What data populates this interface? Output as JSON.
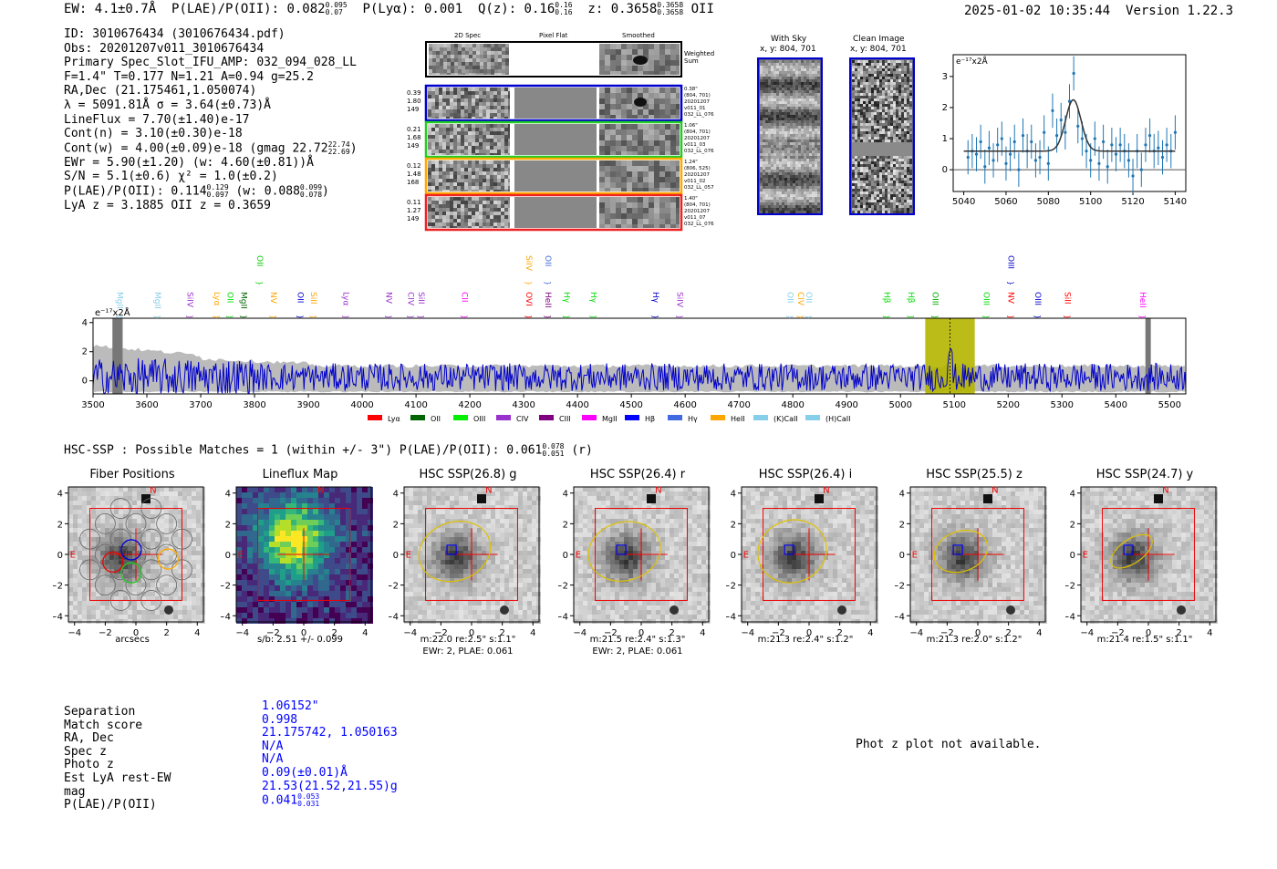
{
  "header": {
    "ew": "EW: 4.1±0.7Å",
    "plae_label": "P(LAE)/P(OII): 0.082",
    "plae_hi": "0.095",
    "plae_lo": "0.07",
    "plya": "P(Lyα): 0.001",
    "qz_label": "Q(z): 0.16",
    "qz_hi": "0.16",
    "qz_lo": "0.16",
    "z_label": "z: 0.3658",
    "z_hi": "0.3658",
    "z_lo": "0.3658",
    "z_line": "OII",
    "timestamp": "2025-01-02 10:35:44",
    "version": "Version 1.22.3"
  },
  "info": {
    "id": "ID: 3010676434 (3010676434.pdf)",
    "obs": "Obs: 20201207v011_3010676434",
    "primary": "Primary Spec_Slot_IFU_AMP: 032_094_028_LL",
    "params": "F=1.4\"  T=0.177  N=1.21  A=0.94  g=25.2",
    "radec": "RA,Dec (21.175461,1.050074)",
    "lambda": "λ = 5091.81Å  σ = 3.64(±0.73)Å",
    "lineflux": "LineFlux = 7.70(±1.40)e-17",
    "contn": "Cont(n) = 3.10(±0.30)e-18",
    "contw": "Cont(w) = 4.00(±0.09)e-18 (gmag 22.72",
    "contw_hi": "22.74",
    "contw_lo": "22.69",
    "ewr": "EWr = 5.90(±1.20) (w: 4.60(±0.81))Å",
    "sn": "S/N = 5.1(±0.6)  χ² = 1.0(±0.2)",
    "plae": "P(LAE)/P(OII): 0.114",
    "plae_hi": "0.129",
    "plae_lo": "0.097",
    "plae_w": "(w: 0.088",
    "plae_w_hi": "0.099",
    "plae_w_lo": "0.078",
    "lya_z": "LyA z = 3.1885  OII z = 0.3659"
  },
  "cutouts": {
    "col_headers": [
      "2D Spec",
      "Pixel Flat",
      "Smoothed"
    ],
    "weighted_sum": "Weighted Sum",
    "rows": [
      {
        "stats": [
          "0.39",
          "1.80",
          "149"
        ],
        "meta": [
          "0.38\"",
          "(804, 701)",
          "20201207",
          "v011_01",
          "032_LL_076"
        ],
        "color": "#0000cc"
      },
      {
        "stats": [
          "0.21",
          "1.68",
          "149"
        ],
        "meta": [
          "1.06\"",
          "(804, 701)",
          "20201207",
          "v011_03",
          "032_LL_076"
        ],
        "color": "#22cc22"
      },
      {
        "stats": [
          "0.12",
          "1.48",
          "168"
        ],
        "meta": [
          "1.24\"",
          "(806, 525)",
          "20201207",
          "v011_02",
          "032_LL_057"
        ],
        "color": "#ffaa00"
      },
      {
        "stats": [
          "0.11",
          "1.27",
          "149"
        ],
        "meta": [
          "1.40\"",
          "(804, 701)",
          "20201207",
          "v011_07",
          "032_LL_076"
        ],
        "color": "#ee2222"
      }
    ],
    "with_sky_title": "With Sky",
    "with_sky_xy": "x, y: 804, 701",
    "clean_title": "Clean Image",
    "clean_xy": "x, y: 804, 701"
  },
  "fit_plot": {
    "unit_label": "e⁻¹⁷x2Å",
    "chart_data": {
      "type": "scatter",
      "xlim": [
        5035,
        5145
      ],
      "ylim": [
        -0.7,
        3.7
      ],
      "x_ticks": [
        "5040",
        "5060",
        "5080",
        "5100",
        "5120",
        "5140"
      ],
      "y_ticks": [
        "0",
        "1",
        "2",
        "3"
      ],
      "continuum": 0.6,
      "gauss_center": 5091.8,
      "gauss_amp": 1.65,
      "gauss_sigma": 3.64,
      "x": [
        5042,
        5044,
        5046,
        5048,
        5050,
        5052,
        5054,
        5056,
        5058,
        5060,
        5062,
        5064,
        5066,
        5068,
        5070,
        5072,
        5074,
        5076,
        5078,
        5080,
        5082,
        5084,
        5086,
        5088,
        5090,
        5092,
        5094,
        5096,
        5098,
        5100,
        5102,
        5104,
        5106,
        5108,
        5110,
        5112,
        5114,
        5116,
        5118,
        5120,
        5122,
        5124,
        5126,
        5128,
        5130,
        5132,
        5134,
        5136,
        5138,
        5140
      ],
      "y": [
        0.4,
        0.6,
        0.5,
        0.9,
        0.1,
        0.7,
        0.3,
        0.8,
        1.0,
        0.2,
        0.5,
        0.9,
        0.0,
        1.1,
        0.6,
        0.9,
        0.3,
        0.4,
        1.2,
        0.2,
        1.9,
        1.1,
        1.6,
        1.2,
        2.2,
        3.1,
        1.4,
        1.0,
        0.6,
        0.3,
        1.0,
        0.2,
        0.9,
        0.1,
        0.8,
        0.5,
        0.8,
        0.6,
        0.3,
        -0.2,
        0.6,
        0.0,
        0.8,
        1.1,
        0.6,
        0.7,
        0.4,
        0.8,
        0.6,
        1.2
      ],
      "err": 0.55
    }
  },
  "spectrum": {
    "unit_label": "e⁻¹⁷x2Å",
    "chart_data": {
      "type": "line",
      "xlim": [
        3500,
        5530
      ],
      "ylim": [
        -0.9,
        4.3
      ],
      "x_ticks": [
        "3500",
        "3600",
        "3700",
        "3800",
        "3900",
        "4000",
        "4100",
        "4200",
        "4300",
        "4400",
        "4500",
        "4600",
        "4700",
        "4800",
        "4900",
        "5000",
        "5100",
        "5200",
        "5300",
        "5400",
        "5500"
      ],
      "y_ticks": [
        "0",
        "2",
        "4"
      ],
      "highlight_range": [
        5046,
        5138
      ],
      "line_marker": 5091.8,
      "masked_ranges": [
        [
          3536,
          3555
        ],
        [
          5455,
          5465
        ]
      ],
      "line_labels": [
        {
          "w": 3540,
          "label": "MgII",
          "color": "#87ceeb",
          "row": 1
        },
        {
          "w": 3610,
          "label": "MgII",
          "color": "#87ceeb",
          "row": 1
        },
        {
          "w": 3670,
          "label": "SiIV",
          "color": "#9932cc",
          "row": 1
        },
        {
          "w": 3720,
          "label": "Lyα",
          "color": "#ffa500",
          "row": 1
        },
        {
          "w": 3745,
          "label": "OII",
          "color": "#00dd00",
          "row": 1
        },
        {
          "w": 3770,
          "label": "MgII",
          "color": "#006400",
          "row": 1
        },
        {
          "w": 3800,
          "label": "OII",
          "color": "#00cc00",
          "row": 0
        },
        {
          "w": 3825,
          "label": "NV",
          "color": "#ffa500",
          "row": 1
        },
        {
          "w": 3875,
          "label": "OII",
          "color": "#0000cc",
          "row": 1
        },
        {
          "w": 3900,
          "label": "SiII",
          "color": "#ffa500",
          "row": 1
        },
        {
          "w": 3960,
          "label": "Lyα",
          "color": "#9932cc",
          "row": 1
        },
        {
          "w": 4040,
          "label": "NV",
          "color": "#9932cc",
          "row": 1
        },
        {
          "w": 4080,
          "label": "CIV",
          "color": "#9932cc",
          "row": 1
        },
        {
          "w": 4100,
          "label": "SiII",
          "color": "#9932cc",
          "row": 1
        },
        {
          "w": 4180,
          "label": "CII",
          "color": "#ff00ff",
          "row": 1
        },
        {
          "w": 4300,
          "label": "SiIV",
          "color": "#ffa500",
          "row": 0
        },
        {
          "w": 4300,
          "label": "OVI",
          "color": "#ff0000",
          "row": 1
        },
        {
          "w": 4335,
          "label": "OII",
          "color": "#4169e1",
          "row": 0
        },
        {
          "w": 4335,
          "label": "HeII",
          "color": "#800080",
          "row": 1
        },
        {
          "w": 4370,
          "label": "Hγ",
          "color": "#00dd00",
          "row": 1
        },
        {
          "w": 4420,
          "label": "Hγ",
          "color": "#00dd00",
          "row": 1
        },
        {
          "w": 4535,
          "label": "Hγ",
          "color": "#0000cc",
          "row": 1
        },
        {
          "w": 4580,
          "label": "SiIV",
          "color": "#9932cc",
          "row": 1
        },
        {
          "w": 4785,
          "label": "OII",
          "color": "#87ceeb",
          "row": 1
        },
        {
          "w": 4805,
          "label": "CIV",
          "color": "#ffa500",
          "row": 1
        },
        {
          "w": 4820,
          "label": "OII",
          "color": "#87ceeb",
          "row": 1
        },
        {
          "w": 4965,
          "label": "Hβ",
          "color": "#00dd00",
          "row": 1
        },
        {
          "w": 5010,
          "label": "Hβ",
          "color": "#00dd00",
          "row": 1
        },
        {
          "w": 5055,
          "label": "OIII",
          "color": "#00aa00",
          "row": 1
        },
        {
          "w": 5150,
          "label": "OIII",
          "color": "#00dd00",
          "row": 1
        },
        {
          "w": 5195,
          "label": "NV",
          "color": "#ff0000",
          "row": 1
        },
        {
          "w": 5195,
          "label": "OIII",
          "color": "#0000cc",
          "row": 0
        },
        {
          "w": 5245,
          "label": "OIII",
          "color": "#0000cc",
          "row": 1
        },
        {
          "w": 5300,
          "label": "SiII",
          "color": "#ff0000",
          "row": 1
        },
        {
          "w": 5440,
          "label": "HeII",
          "color": "#ff00ff",
          "row": 1
        }
      ],
      "legend": [
        {
          "label": "Lyα",
          "color": "#ff0000"
        },
        {
          "label": "OII",
          "color": "#006400"
        },
        {
          "label": "OIII",
          "color": "#00ee00"
        },
        {
          "label": "CIV",
          "color": "#9932cc"
        },
        {
          "label": "CIII",
          "color": "#800080"
        },
        {
          "label": "MgII",
          "color": "#ff00ff"
        },
        {
          "label": "Hβ",
          "color": "#0000ff"
        },
        {
          "label": "Hγ",
          "color": "#4169e1"
        },
        {
          "label": "HeII",
          "color": "#ffa500"
        },
        {
          "label": "(K)CaII",
          "color": "#87ceeb"
        },
        {
          "label": "(H)CaII",
          "color": "#87ceeb"
        }
      ]
    }
  },
  "hsc": {
    "header": "HSC-SSP : Possible Matches = 1 (within +/- 3\")  P(LAE)/P(OII): 0.061",
    "header_hi": "0.078",
    "header_lo": "0.051",
    "header_band": "(r)",
    "axis_ticks": [
      "-4",
      "-2",
      "0",
      "2",
      "4"
    ],
    "panels": [
      {
        "title": "Fiber Positions",
        "caption1": "arcsecs",
        "caption2": ""
      },
      {
        "title": "Lineflux Map",
        "caption1": "s/b: 2.51 +/- 0.099",
        "caption2": ""
      },
      {
        "title": "HSC SSP(26.8) g",
        "caption1": "m:22.0  re:2.5\"  s:1.1\"",
        "caption2": "EWr: 2, PLAE: 0.061"
      },
      {
        "title": "HSC SSP(26.4) r",
        "caption1": "m:21.5  re:2.4\"  s:1.3\"",
        "caption2": "EWr: 2, PLAE: 0.061"
      },
      {
        "title": "HSC SSP(26.4) i",
        "caption1": "m:21.3  re:2.4\"  s:1.2\"",
        "caption2": ""
      },
      {
        "title": "HSC SSP(25.5) z",
        "caption1": "m:21.3  re:2.0\"  s:1.2\"",
        "caption2": ""
      },
      {
        "title": "HSC SSP(24.7) y",
        "caption1": "m:21.4  re:1.5\"  s:1.1\"",
        "caption2": ""
      }
    ],
    "compass_n": "N",
    "compass_e": "E"
  },
  "match": {
    "labels": [
      "Separation",
      "Match score",
      "RA, Dec",
      "Spec z",
      "Photo z",
      "Est LyA rest-EW",
      "mag",
      "P(LAE)/P(OII)"
    ],
    "values": [
      "1.06152\"",
      "0.998",
      "21.175742, 1.050163",
      "N/A",
      "N/A",
      "0.09(±0.01)Å",
      "21.53(21.52,21.55)g",
      "0.041"
    ],
    "plae_hi": "0.053",
    "plae_lo": "0.031",
    "photz_msg": "Phot z plot not available."
  }
}
